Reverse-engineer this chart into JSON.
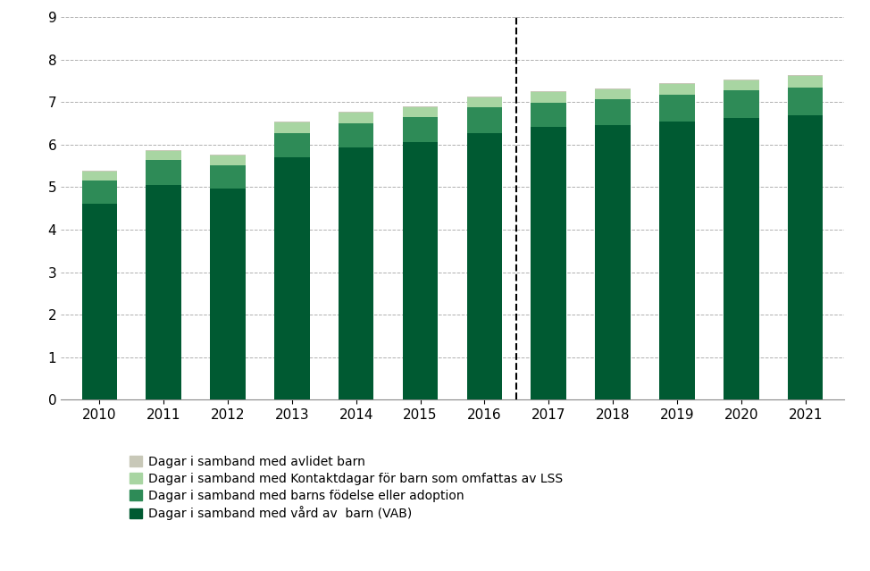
{
  "years": [
    2010,
    2011,
    2012,
    2013,
    2014,
    2015,
    2016,
    2017,
    2018,
    2019,
    2020,
    2021
  ],
  "vab": [
    4.6,
    5.05,
    4.97,
    5.7,
    5.93,
    6.07,
    6.28,
    6.42,
    6.47,
    6.55,
    6.62,
    6.7
  ],
  "fodelse": [
    0.55,
    0.58,
    0.55,
    0.58,
    0.58,
    0.58,
    0.6,
    0.57,
    0.6,
    0.62,
    0.65,
    0.65
  ],
  "lss": [
    0.22,
    0.22,
    0.22,
    0.24,
    0.24,
    0.24,
    0.24,
    0.24,
    0.24,
    0.25,
    0.25,
    0.26
  ],
  "avlidet": [
    0.02,
    0.02,
    0.02,
    0.02,
    0.02,
    0.02,
    0.02,
    0.02,
    0.02,
    0.02,
    0.02,
    0.02
  ],
  "color_vab": "#005a32",
  "color_fodelse": "#2e8b57",
  "color_lss": "#a8d5a2",
  "color_avlidet": "#c8c8b8",
  "ylim": [
    0,
    9
  ],
  "yticks": [
    0,
    1,
    2,
    3,
    4,
    5,
    6,
    7,
    8,
    9
  ],
  "dashed_line_x": 6.5,
  "legend_labels": [
    "Dagar i samband med avlidet barn",
    "Dagar i samband med Kontaktdagar för barn som omfattas av LSS",
    "Dagar i samband med barns födelse eller adoption",
    "Dagar i samband med vård av  barn (VAB)"
  ],
  "bar_width": 0.55
}
